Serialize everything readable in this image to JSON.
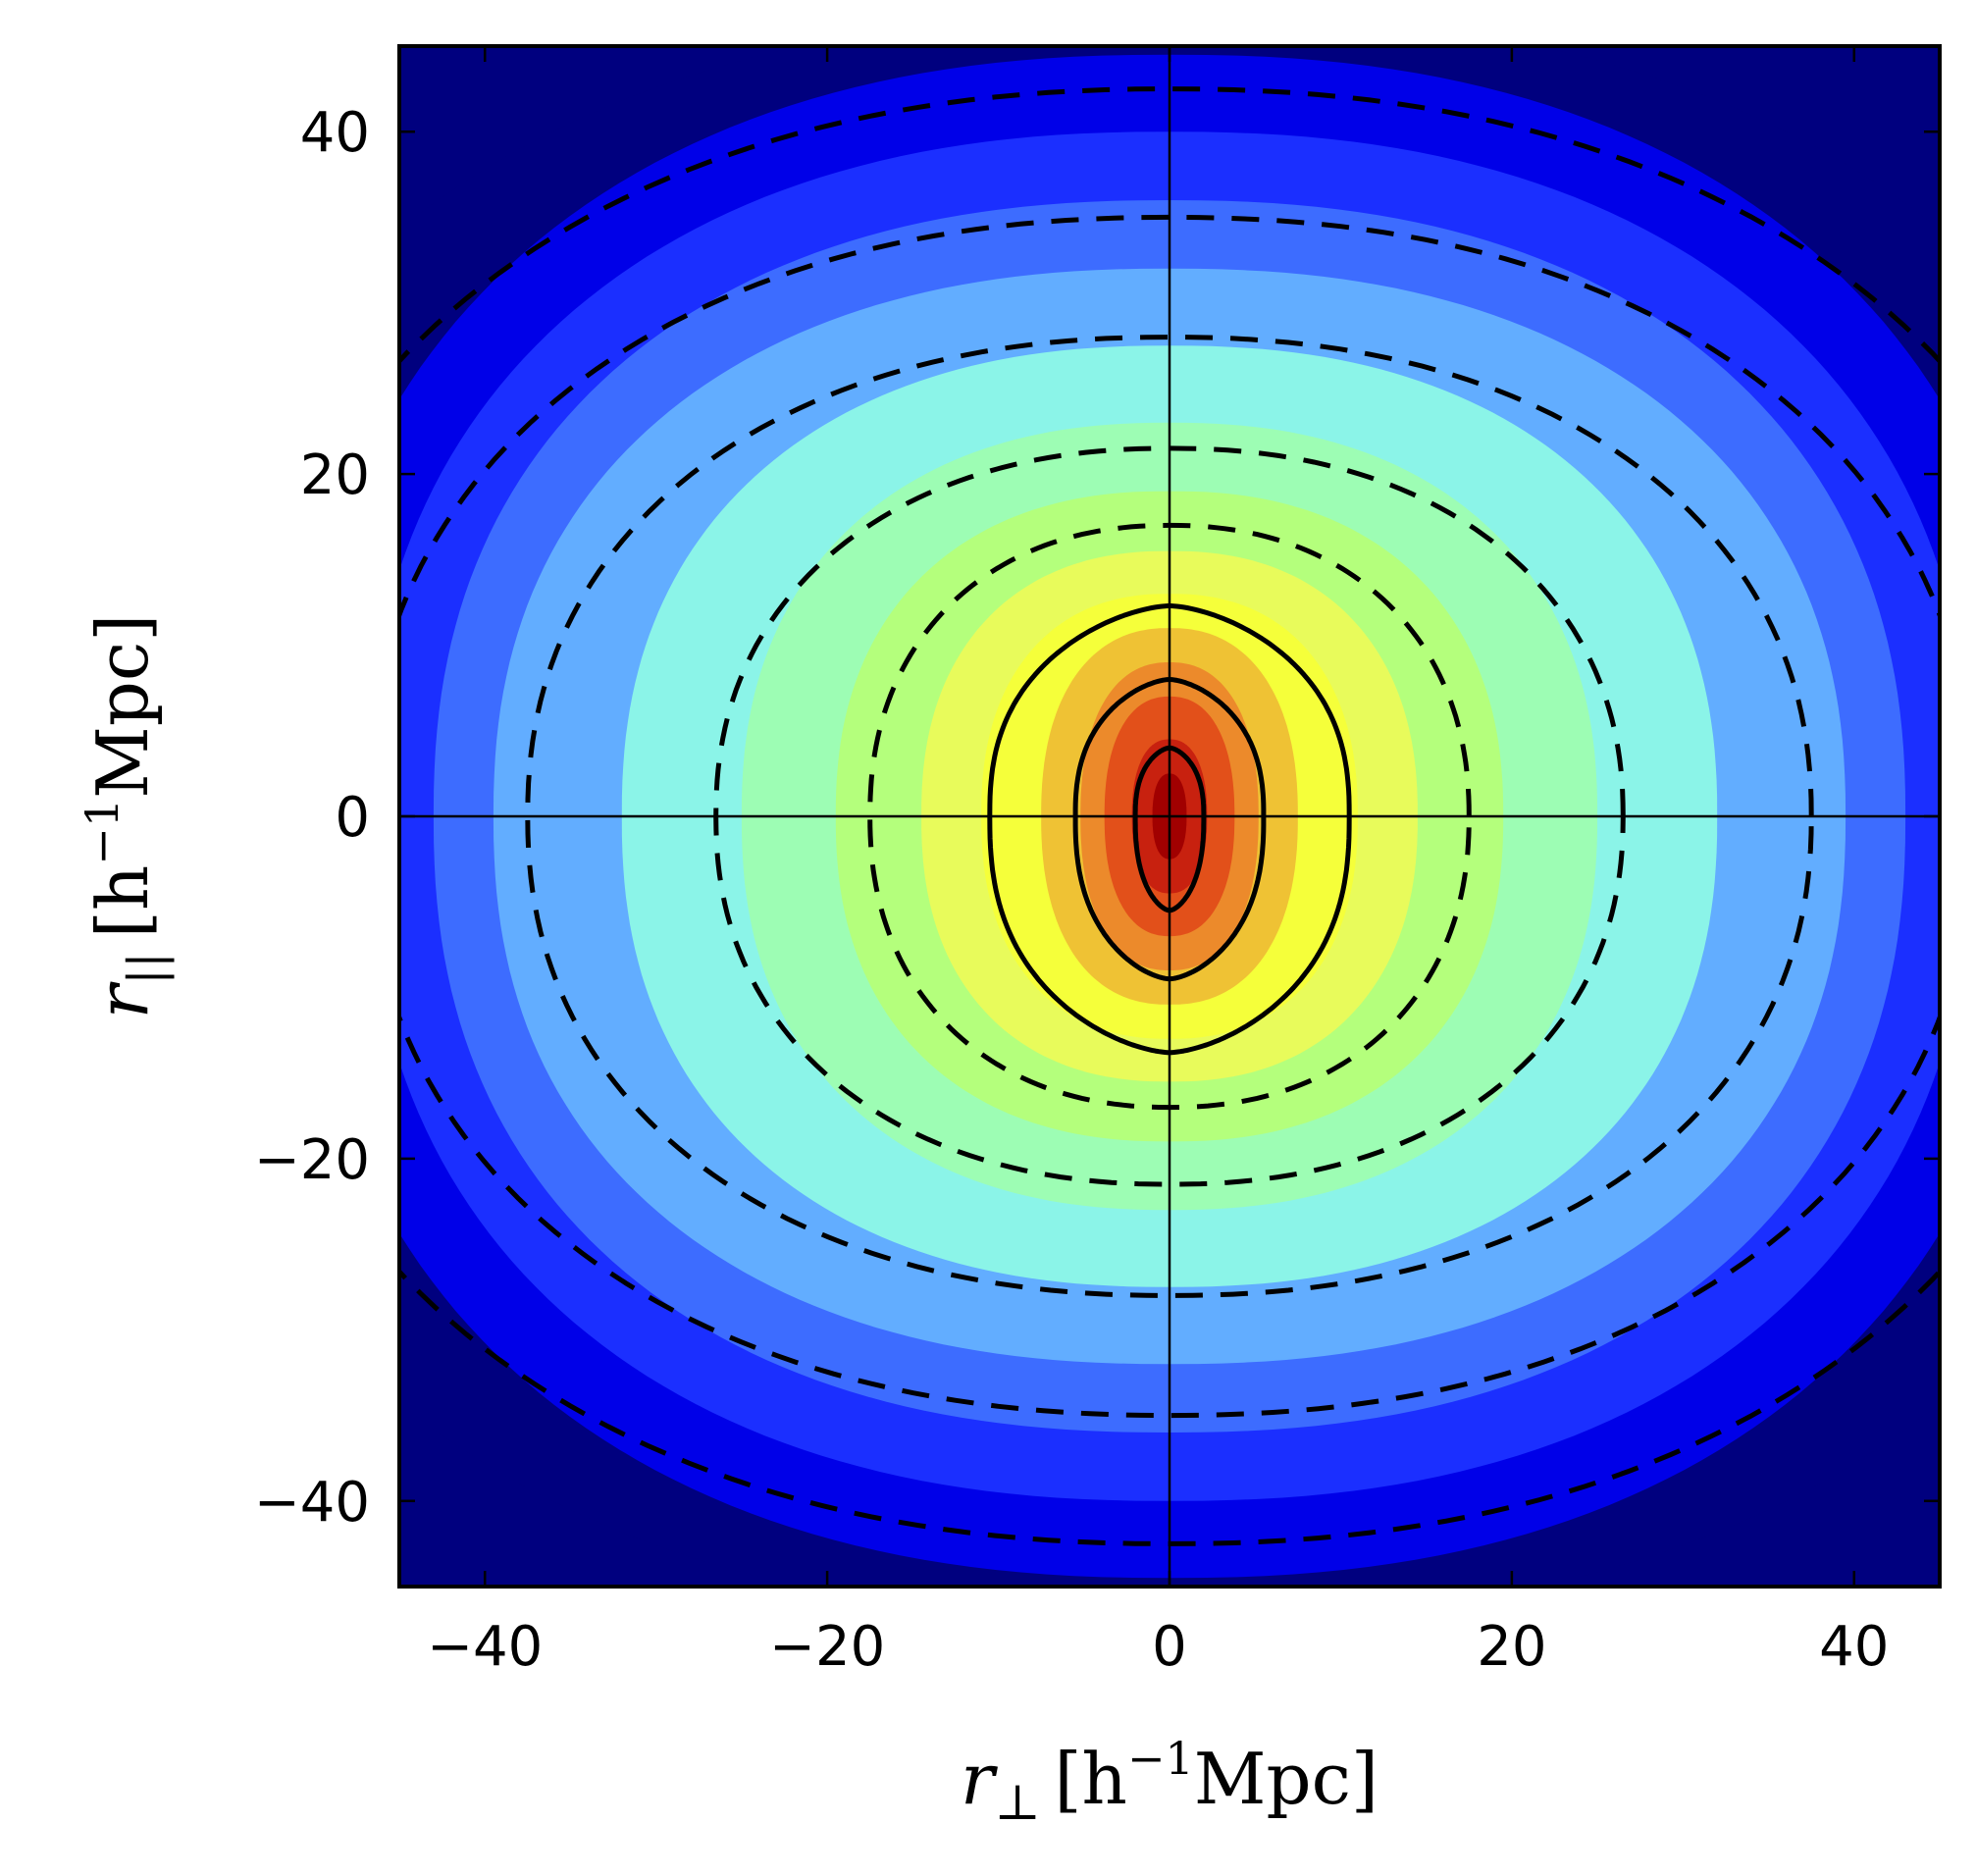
{
  "chart_data": {
    "type": "contour",
    "title": "",
    "xlabel": {
      "symbol": "r",
      "subscript": "⊥",
      "unit_prefix": "[h",
      "unit_exponent": "−1",
      "unit_suffix": "Mpc]"
    },
    "ylabel": {
      "symbol": "r",
      "subscript": "||",
      "unit_prefix": "[h",
      "unit_exponent": "−1",
      "unit_suffix": "Mpc]"
    },
    "xlim": [
      -45,
      45
    ],
    "ylim": [
      -45,
      45
    ],
    "x_ticks": [
      -40,
      -20,
      0,
      20,
      40
    ],
    "y_ticks": [
      -40,
      -20,
      0,
      20,
      40
    ],
    "x_tick_labels": [
      "−40",
      "−20",
      "0",
      "20",
      "40"
    ],
    "y_tick_labels": [
      "−40",
      "−20",
      "0",
      "20",
      "40"
    ],
    "reference_lines": {
      "x": 0,
      "y": 0
    },
    "filled_contours": {
      "colormap": "jet",
      "levels": [
        {
          "color": "#00007f",
          "a": 60,
          "b": 47
        },
        {
          "color": "#0000e8",
          "a": 51,
          "b": 44.5
        },
        {
          "color": "#1b2fff",
          "a": 47,
          "b": 40
        },
        {
          "color": "#3d6cff",
          "a": 43,
          "b": 36
        },
        {
          "color": "#62adff",
          "a": 39.5,
          "b": 32
        },
        {
          "color": "#8bf4e8",
          "a": 32,
          "b": 27.5
        },
        {
          "color": "#9dfdb4",
          "a": 25,
          "b": 23
        },
        {
          "color": "#b4ff7c",
          "a": 19.5,
          "b": 19
        },
        {
          "color": "#e8fb5b",
          "a": 14.5,
          "b": 15.5
        },
        {
          "color": "#f5ff3a",
          "a": 11,
          "b": 13
        },
        {
          "color": "#efc234",
          "a": 7.5,
          "b": 11
        },
        {
          "color": "#ec8a2b",
          "a": 5.2,
          "b": 9
        },
        {
          "color": "#e2501a",
          "a": 3.8,
          "b": 7
        },
        {
          "color": "#c8210f",
          "a": 2.2,
          "b": 4.5
        },
        {
          "color": "#a10000",
          "a": 1.0,
          "b": 2.5
        }
      ]
    },
    "dashed_contours": [
      {
        "a": 55,
        "b": 42.5
      },
      {
        "a": 47,
        "b": 35
      },
      {
        "a": 37.5,
        "b": 28
      },
      {
        "a": 26.5,
        "b": 21.5
      },
      {
        "a": 17.5,
        "b": 17
      }
    ],
    "solid_contours": [
      {
        "a": 10.5,
        "top": 12.3,
        "bottom": 13.8
      },
      {
        "a": 5.5,
        "top": 8.0,
        "bottom": 9.5
      },
      {
        "a": 2.0,
        "top": 4.0,
        "bottom": 5.5
      }
    ]
  }
}
